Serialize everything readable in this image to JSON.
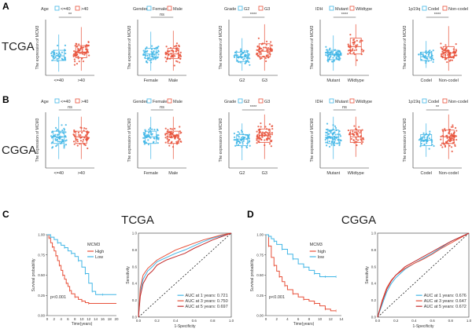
{
  "colors": {
    "low": "#41B6E6",
    "high": "#E8513A",
    "third": "#C42A2A",
    "axis": "#333333",
    "ref": "#000000"
  },
  "panel_letters": {
    "a": "A",
    "b": "B",
    "c": "C",
    "d": "D"
  },
  "row_labels": {
    "top": "TCGA",
    "mid": "CGGA"
  },
  "ylabel": "The expression of MCM3",
  "chart_data": [
    {
      "type": "box",
      "cohort": "TCGA",
      "legend_title": "Age",
      "legend": [
        "<=40",
        ">40"
      ],
      "categories": [
        "<=40",
        ">40"
      ],
      "signif": "**",
      "median": [
        3.6,
        4.0
      ],
      "q1": [
        3.1,
        3.4
      ],
      "q3": [
        4.2,
        4.7
      ],
      "min": [
        1.9,
        2.0
      ],
      "max": [
        5.9,
        6.7
      ],
      "n": [
        40,
        70
      ],
      "ylim": [
        1.5,
        7.5
      ]
    },
    {
      "type": "box",
      "cohort": "TCGA",
      "legend_title": "Gender",
      "legend": [
        "Female",
        "Male"
      ],
      "categories": [
        "Female",
        "Male"
      ],
      "signif": "ns",
      "median": [
        3.8,
        3.8
      ],
      "q1": [
        3.3,
        3.3
      ],
      "q3": [
        4.4,
        4.4
      ],
      "min": [
        2.0,
        2.0
      ],
      "max": [
        6.2,
        6.3
      ],
      "n": [
        55,
        60
      ],
      "ylim": [
        1.5,
        7.5
      ]
    },
    {
      "type": "box",
      "cohort": "TCGA",
      "legend_title": "Grade",
      "legend": [
        "G2",
        "G3"
      ],
      "categories": [
        "G2",
        "G3"
      ],
      "signif": "****",
      "median": [
        3.5,
        4.1
      ],
      "q1": [
        3.0,
        3.5
      ],
      "q3": [
        4.0,
        4.9
      ],
      "min": [
        2.0,
        2.0
      ],
      "max": [
        5.5,
        7.0
      ],
      "n": [
        55,
        60
      ],
      "ylim": [
        1.5,
        7.5
      ]
    },
    {
      "type": "box",
      "cohort": "TCGA",
      "legend_title": "IDH",
      "legend": [
        "Mutant",
        "Wildtype"
      ],
      "categories": [
        "Mutant",
        "Wildtype"
      ],
      "signif": "****",
      "median": [
        3.7,
        4.6
      ],
      "q1": [
        3.2,
        3.8
      ],
      "q3": [
        4.2,
        5.5
      ],
      "min": [
        2.0,
        2.5
      ],
      "max": [
        5.8,
        7.0
      ],
      "n": [
        80,
        40
      ],
      "ylim": [
        1.5,
        7.5
      ]
    },
    {
      "type": "box",
      "cohort": "TCGA",
      "legend_title": "1p19q",
      "legend": [
        "Codel",
        "Non-codel"
      ],
      "categories": [
        "Codel",
        "Non-codel"
      ],
      "signif": "****",
      "median": [
        3.5,
        3.9
      ],
      "q1": [
        3.1,
        3.4
      ],
      "q3": [
        4.0,
        4.6
      ],
      "min": [
        2.3,
        2.0
      ],
      "max": [
        5.2,
        6.8
      ],
      "n": [
        40,
        70
      ],
      "ylim": [
        1.5,
        7.5
      ]
    },
    {
      "type": "box",
      "cohort": "CGGA",
      "legend_title": "Age",
      "legend": [
        "<=40",
        ">40"
      ],
      "categories": [
        "<=40",
        ">40"
      ],
      "signif": "ns",
      "median": [
        3.8,
        3.8
      ],
      "q1": [
        3.2,
        3.2
      ],
      "q3": [
        4.3,
        4.3
      ],
      "min": [
        1.8,
        1.8
      ],
      "max": [
        5.6,
        5.6
      ],
      "n": [
        65,
        55
      ],
      "ylim": [
        1,
        6
      ]
    },
    {
      "type": "box",
      "cohort": "CGGA",
      "legend_title": "Gender",
      "legend": [
        "Female",
        "Male"
      ],
      "categories": [
        "Female",
        "Male"
      ],
      "signif": "ns",
      "median": [
        3.8,
        3.8
      ],
      "q1": [
        3.2,
        3.2
      ],
      "q3": [
        4.3,
        4.3
      ],
      "min": [
        1.8,
        1.8
      ],
      "max": [
        5.6,
        5.6
      ],
      "n": [
        55,
        65
      ],
      "ylim": [
        1,
        6
      ]
    },
    {
      "type": "box",
      "cohort": "CGGA",
      "legend_title": "Grade",
      "legend": [
        "G2",
        "G3"
      ],
      "categories": [
        "G2",
        "G3"
      ],
      "signif": "****",
      "median": [
        3.6,
        3.9
      ],
      "q1": [
        3.0,
        3.3
      ],
      "q3": [
        4.0,
        4.5
      ],
      "min": [
        1.7,
        1.8
      ],
      "max": [
        5.0,
        5.8
      ],
      "n": [
        55,
        70
      ],
      "ylim": [
        1,
        6
      ]
    },
    {
      "type": "box",
      "cohort": "CGGA",
      "legend_title": "IDH",
      "legend": [
        "Mutant",
        "Wildtype"
      ],
      "categories": [
        "Mutant",
        "Wildtype"
      ],
      "signif": "ns",
      "median": [
        3.8,
        3.8
      ],
      "q1": [
        3.2,
        3.3
      ],
      "q3": [
        4.4,
        4.4
      ],
      "min": [
        1.8,
        2.0
      ],
      "max": [
        5.6,
        5.6
      ],
      "n": [
        80,
        45
      ],
      "ylim": [
        1,
        6
      ]
    },
    {
      "type": "box",
      "cohort": "CGGA",
      "legend_title": "1p19q",
      "legend": [
        "Codel",
        "Non-codel"
      ],
      "categories": [
        "Codel",
        "Non-codel"
      ],
      "signif": "**",
      "median": [
        3.5,
        3.8
      ],
      "q1": [
        3.0,
        3.2
      ],
      "q3": [
        4.0,
        4.4
      ],
      "min": [
        2.0,
        1.8
      ],
      "max": [
        5.0,
        5.8
      ],
      "n": [
        40,
        75
      ],
      "ylim": [
        1,
        6
      ]
    },
    {
      "type": "line",
      "subtype": "survival",
      "cohort": "TCGA",
      "xlabel": "Time(years)",
      "ylabel": "Survival probability",
      "pvalue": "p<0.001",
      "legend_title": "MCM3",
      "xlim": [
        0,
        20
      ],
      "ylim": [
        0,
        1
      ],
      "yticks": [
        "0.00",
        "0.25",
        "0.50",
        "0.75",
        "1.00"
      ],
      "xticks": [
        0,
        2,
        4,
        6,
        8,
        10,
        12,
        14,
        16,
        18,
        20
      ],
      "series": [
        {
          "name": "High",
          "colorKey": "high",
          "x": [
            0,
            0.5,
            1,
            1.5,
            2,
            2.5,
            3,
            3.5,
            4,
            4.5,
            5,
            5.5,
            6,
            6.5,
            7,
            8,
            9,
            10,
            11,
            12,
            20
          ],
          "y": [
            1.0,
            0.96,
            0.9,
            0.85,
            0.8,
            0.74,
            0.68,
            0.62,
            0.56,
            0.5,
            0.45,
            0.4,
            0.36,
            0.31,
            0.27,
            0.23,
            0.2,
            0.18,
            0.16,
            0.15,
            0.15
          ]
        },
        {
          "name": "Low",
          "colorKey": "low",
          "x": [
            0,
            1,
            2,
            3,
            4,
            5,
            6,
            7,
            8,
            9,
            10,
            11,
            12,
            13,
            14,
            16,
            20
          ],
          "y": [
            1.0,
            0.97,
            0.94,
            0.9,
            0.87,
            0.84,
            0.8,
            0.77,
            0.73,
            0.68,
            0.6,
            0.52,
            0.4,
            0.3,
            0.26,
            0.26,
            0.26
          ]
        }
      ]
    },
    {
      "type": "line",
      "subtype": "roc",
      "cohort": "TCGA",
      "xlabel": "1-Specificity",
      "ylabel": "Sensitivity",
      "xlim": [
        0,
        1
      ],
      "ylim": [
        0,
        1
      ],
      "ticks": [
        "0.0",
        "0.2",
        "0.4",
        "0.6",
        "0.8",
        "1.0"
      ],
      "series": [
        {
          "name": "AUC at 1 years: 0.721",
          "colorKey": "low",
          "x": [
            0,
            0.02,
            0.05,
            0.1,
            0.15,
            0.2,
            0.3,
            0.4,
            0.5,
            0.6,
            0.7,
            0.8,
            0.9,
            1.0
          ],
          "y": [
            0,
            0.3,
            0.45,
            0.55,
            0.6,
            0.66,
            0.71,
            0.76,
            0.8,
            0.85,
            0.9,
            0.94,
            0.97,
            1.0
          ]
        },
        {
          "name": "AUC at 3 years: 0.750",
          "colorKey": "high",
          "x": [
            0,
            0.02,
            0.05,
            0.1,
            0.15,
            0.2,
            0.3,
            0.4,
            0.5,
            0.6,
            0.7,
            0.8,
            0.9,
            1.0
          ],
          "y": [
            0,
            0.35,
            0.5,
            0.58,
            0.63,
            0.68,
            0.74,
            0.8,
            0.84,
            0.88,
            0.92,
            0.95,
            0.98,
            1.0
          ]
        },
        {
          "name": "AUC at 5 years: 0.697",
          "colorKey": "third",
          "x": [
            0,
            0.02,
            0.05,
            0.1,
            0.15,
            0.2,
            0.3,
            0.4,
            0.5,
            0.6,
            0.7,
            0.8,
            0.9,
            1.0
          ],
          "y": [
            0,
            0.25,
            0.4,
            0.5,
            0.55,
            0.62,
            0.68,
            0.72,
            0.76,
            0.82,
            0.87,
            0.92,
            0.96,
            1.0
          ]
        }
      ]
    },
    {
      "type": "line",
      "subtype": "survival",
      "cohort": "CGGA",
      "xlabel": "Time(years)",
      "ylabel": "Survival probability",
      "pvalue": "p<0.001",
      "legend_title": "MCM3",
      "xlim": [
        0,
        14
      ],
      "ylim": [
        0,
        1
      ],
      "yticks": [
        "0.00",
        "0.25",
        "0.50",
        "0.75",
        "1.00"
      ],
      "xticks": [
        0,
        2,
        4,
        6,
        8,
        10,
        12,
        14
      ],
      "series": [
        {
          "name": "high",
          "colorKey": "high",
          "x": [
            0,
            0.5,
            1,
            1.5,
            2,
            2.5,
            3,
            3.5,
            4,
            5,
            6,
            7,
            8,
            9,
            10,
            11,
            12,
            13
          ],
          "y": [
            1.0,
            0.86,
            0.72,
            0.62,
            0.55,
            0.48,
            0.42,
            0.37,
            0.32,
            0.27,
            0.23,
            0.2,
            0.18,
            0.15,
            0.12,
            0.08,
            0.06,
            0.06
          ]
        },
        {
          "name": "low",
          "colorKey": "low",
          "x": [
            0,
            0.5,
            1,
            1.5,
            2,
            3,
            4,
            5,
            6,
            7,
            8,
            9,
            10,
            11,
            12,
            13
          ],
          "y": [
            1.0,
            0.98,
            0.95,
            0.92,
            0.88,
            0.82,
            0.76,
            0.7,
            0.64,
            0.6,
            0.56,
            0.52,
            0.48,
            0.48,
            0.48,
            0.48
          ]
        }
      ]
    },
    {
      "type": "line",
      "subtype": "roc",
      "cohort": "CGGA",
      "xlabel": "1-Specificity",
      "ylabel": "Sensitivity",
      "xlim": [
        0,
        1
      ],
      "ylim": [
        0,
        1
      ],
      "ticks": [
        "0.0",
        "0.2",
        "0.4",
        "0.6",
        "0.8",
        "1.0"
      ],
      "series": [
        {
          "name": "AUC at 1 years: 0.676",
          "colorKey": "low",
          "x": [
            0,
            0.05,
            0.1,
            0.15,
            0.2,
            0.3,
            0.4,
            0.5,
            0.6,
            0.7,
            0.8,
            0.9,
            1.0
          ],
          "y": [
            0,
            0.15,
            0.3,
            0.4,
            0.47,
            0.57,
            0.64,
            0.7,
            0.76,
            0.83,
            0.9,
            0.95,
            1.0
          ]
        },
        {
          "name": "AUC at 3 years: 0.647",
          "colorKey": "high",
          "x": [
            0,
            0.05,
            0.1,
            0.15,
            0.2,
            0.3,
            0.4,
            0.5,
            0.6,
            0.7,
            0.8,
            0.9,
            1.0
          ],
          "y": [
            0,
            0.2,
            0.35,
            0.44,
            0.5,
            0.58,
            0.64,
            0.69,
            0.75,
            0.82,
            0.88,
            0.94,
            1.0
          ]
        },
        {
          "name": "AUC at 5 years: 0.672",
          "colorKey": "third",
          "x": [
            0,
            0.05,
            0.1,
            0.15,
            0.2,
            0.3,
            0.4,
            0.5,
            0.6,
            0.7,
            0.8,
            0.9,
            1.0
          ],
          "y": [
            0,
            0.18,
            0.33,
            0.43,
            0.5,
            0.6,
            0.66,
            0.72,
            0.78,
            0.84,
            0.9,
            0.95,
            1.0
          ]
        }
      ]
    }
  ]
}
